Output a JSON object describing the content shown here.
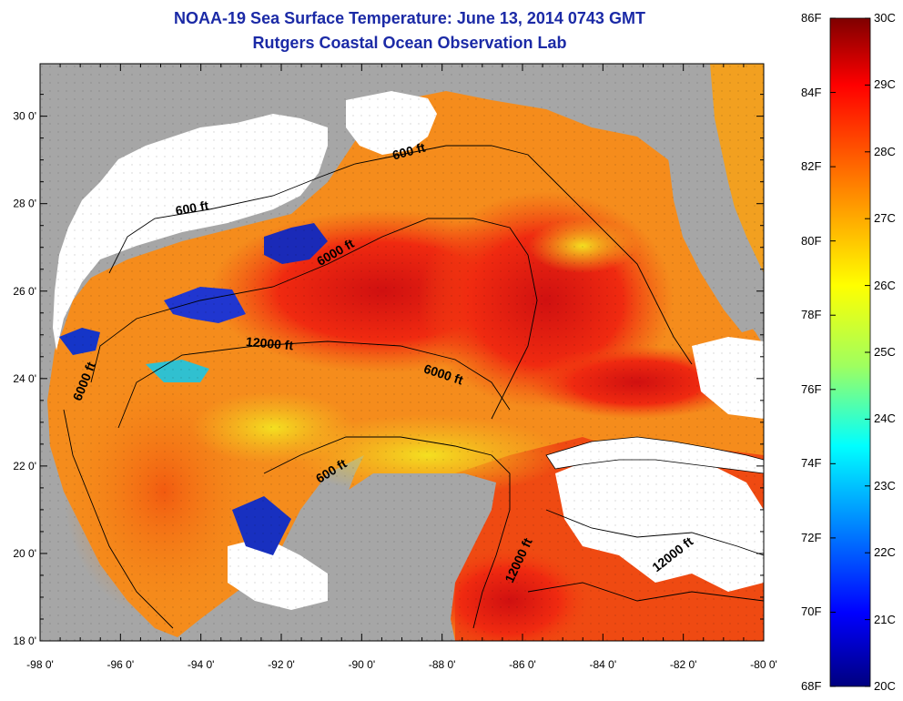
{
  "title": "NOAA-19 Sea Surface Temperature:  June 13, 2014 0743 GMT",
  "subtitle": "Rutgers Coastal Ocean Observation Lab",
  "map": {
    "lon_ticks": [
      "-98 0'",
      "-96 0'",
      "-94 0'",
      "-92 0'",
      "-90 0'",
      "-88 0'",
      "-86 0'",
      "-84 0'",
      "-82 0'",
      "-80 0'"
    ],
    "lat_ticks": [
      "30 0'",
      "28 0'",
      "26 0'",
      "24 0'",
      "22 0'",
      "20 0'",
      "18 0'"
    ],
    "lon_range": [
      -98,
      -80
    ],
    "lat_range": [
      18,
      31.2
    ],
    "contour_labels": [
      {
        "id": "c600-north",
        "text": "600 ft",
        "lon": -94.2,
        "lat": 27.8,
        "angle": -10
      },
      {
        "id": "c600-ne",
        "text": "600 ft",
        "lon": -88.8,
        "lat": 29.1,
        "angle": -15
      },
      {
        "id": "c6000-north",
        "text": "6000 ft",
        "lon": -90.6,
        "lat": 26.8,
        "angle": -30
      },
      {
        "id": "c12000-west",
        "text": "12000 ft",
        "lon": -92.3,
        "lat": 24.7,
        "angle": 5
      },
      {
        "id": "c6000-west",
        "text": "6000 ft",
        "lon": -96.8,
        "lat": 23.9,
        "angle": -68
      },
      {
        "id": "c6000-center",
        "text": "6000 ft",
        "lon": -88.0,
        "lat": 24.0,
        "angle": 18
      },
      {
        "id": "c600-yucatan",
        "text": "600 ft",
        "lon": -90.7,
        "lat": 21.8,
        "angle": -32
      },
      {
        "id": "c12000-south",
        "text": "12000 ft",
        "lon": -86.0,
        "lat": 19.8,
        "angle": -65
      },
      {
        "id": "c12000-se",
        "text": "12000 ft",
        "lon": -82.2,
        "lat": 19.9,
        "angle": -38
      }
    ]
  },
  "colorbar": {
    "f_labels": [
      "86F",
      "84F",
      "82F",
      "80F",
      "78F",
      "76F",
      "74F",
      "72F",
      "70F",
      "68F"
    ],
    "c_labels": [
      "30C",
      "29C",
      "28C",
      "27C",
      "26C",
      "25C",
      "24C",
      "23C",
      "22C",
      "21C",
      "20C"
    ],
    "f_range": [
      68,
      86
    ],
    "c_range": [
      20,
      30
    ],
    "colors": [
      "#00007f",
      "#0000ff",
      "#007fff",
      "#00ffff",
      "#7fff7f",
      "#ffff00",
      "#ff7f00",
      "#ff0000",
      "#7f0000"
    ]
  }
}
